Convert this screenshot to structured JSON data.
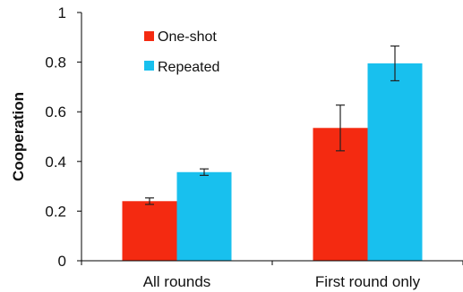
{
  "chart_data": {
    "type": "bar",
    "categories": [
      "All rounds",
      "First round only"
    ],
    "ylabel": "Cooperation",
    "xlabel": "",
    "ylim": [
      0,
      1
    ],
    "yticks": [
      "0",
      "0.2",
      "0.4",
      "0.6",
      "0.8",
      "1"
    ],
    "legend_position": "top-left",
    "series": [
      {
        "name": "One-shot",
        "color": "#f42a11",
        "values": [
          0.24,
          0.535
        ],
        "errors": [
          0.013,
          0.092
        ]
      },
      {
        "name": "Repeated",
        "color": "#18c0ee",
        "values": [
          0.357,
          0.795
        ],
        "errors": [
          0.013,
          0.07
        ]
      }
    ]
  }
}
